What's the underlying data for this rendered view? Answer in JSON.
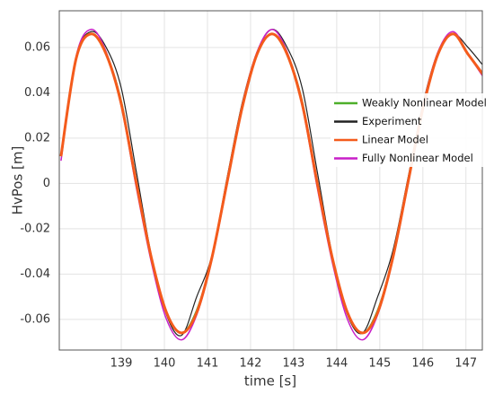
{
  "chart_data": {
    "type": "line",
    "xlabel": "time [s]",
    "ylabel": "HvPos [m]",
    "x": [
      137.6,
      137.95,
      138.3,
      138.65,
      139.0,
      139.35,
      139.7,
      140.05,
      140.4,
      140.75,
      141.1,
      141.45,
      141.8,
      142.15,
      142.5,
      142.85,
      143.2,
      143.55,
      143.9,
      144.25,
      144.6,
      144.95,
      145.3,
      145.65,
      146.0,
      146.35,
      146.7,
      147.05,
      147.4
    ],
    "series": [
      {
        "name": "Weakly Nonlinear Model",
        "color": "#4daf2a",
        "width": 2,
        "values": [
          0.012,
          0.055,
          0.066,
          0.057,
          0.036,
          0.0,
          -0.033,
          -0.057,
          -0.066,
          -0.056,
          -0.033,
          0.0,
          0.033,
          0.057,
          0.066,
          0.057,
          0.036,
          0.0,
          -0.033,
          -0.057,
          -0.066,
          -0.056,
          -0.033,
          0.0,
          0.033,
          0.057,
          0.066,
          0.057,
          0.048
        ]
      },
      {
        "name": "Experiment",
        "color": "#222222",
        "width": 1.2,
        "values": [
          0.013,
          0.056,
          0.067,
          0.06,
          0.042,
          0.005,
          -0.032,
          -0.058,
          -0.067,
          -0.05,
          -0.032,
          0.002,
          0.035,
          0.058,
          0.068,
          0.06,
          0.042,
          0.005,
          -0.032,
          -0.058,
          -0.066,
          -0.05,
          -0.03,
          0.002,
          0.035,
          0.058,
          0.066,
          0.06,
          0.052
        ]
      },
      {
        "name": "Linear Model",
        "color": "#f45b1c",
        "width": 3,
        "values": [
          0.012,
          0.055,
          0.066,
          0.057,
          0.035,
          0.0,
          -0.033,
          -0.057,
          -0.066,
          -0.057,
          -0.033,
          0.0,
          0.033,
          0.057,
          0.066,
          0.057,
          0.035,
          0.0,
          -0.033,
          -0.057,
          -0.066,
          -0.057,
          -0.033,
          0.0,
          0.033,
          0.057,
          0.066,
          0.057,
          0.048
        ]
      },
      {
        "name": "Fully Nonlinear Model",
        "color": "#c81ec8",
        "width": 1.5,
        "values": [
          0.01,
          0.056,
          0.068,
          0.058,
          0.034,
          -0.002,
          -0.035,
          -0.06,
          -0.069,
          -0.058,
          -0.034,
          -0.001,
          0.034,
          0.058,
          0.068,
          0.058,
          0.034,
          -0.002,
          -0.035,
          -0.06,
          -0.069,
          -0.058,
          -0.034,
          -0.001,
          0.034,
          0.058,
          0.067,
          0.057,
          0.047
        ]
      }
    ],
    "legend_order": [
      0,
      1,
      2,
      3
    ],
    "draw_order": [
      1,
      3,
      0,
      2
    ],
    "xlim": [
      137.56,
      147.38
    ],
    "ylim": [
      -0.0735,
      0.0762
    ],
    "xticks": [
      139,
      140,
      141,
      142,
      143,
      144,
      145,
      146,
      147
    ],
    "yticks": [
      -0.06,
      -0.04,
      -0.02,
      0,
      0.02,
      0.04,
      0.06
    ],
    "grid": true,
    "legend": "right"
  }
}
